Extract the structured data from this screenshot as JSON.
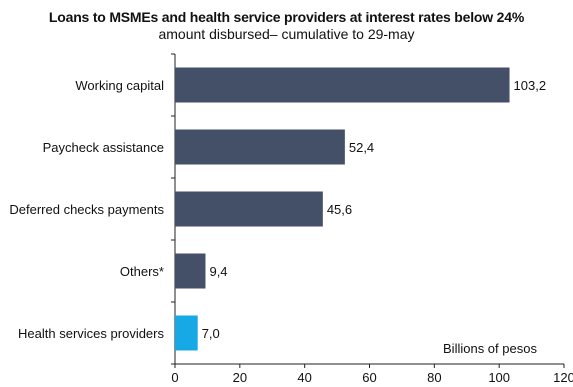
{
  "chart_data": {
    "type": "bar",
    "orientation": "horizontal",
    "title": "Loans to MSMEs and health service providers at interest rates below 24%",
    "subtitle": "amount disbursed– cumulative to 29-may",
    "unit_label": "Billions of pesos",
    "categories": [
      "Working capital",
      "Paycheck assistance",
      "Deferred checks payments",
      "Others*",
      "Health services providers"
    ],
    "values": [
      103.2,
      52.4,
      45.6,
      9.4,
      7.0
    ],
    "value_labels": [
      "103,2",
      "52,4",
      "45,6",
      "9,4",
      "7,0"
    ],
    "bar_colors": [
      "#435068",
      "#435068",
      "#435068",
      "#435068",
      "#17a9e6"
    ],
    "xlim": [
      0,
      120
    ],
    "xticks": [
      "0",
      "20",
      "40",
      "60",
      "80",
      "100",
      "120"
    ],
    "grid": false
  }
}
